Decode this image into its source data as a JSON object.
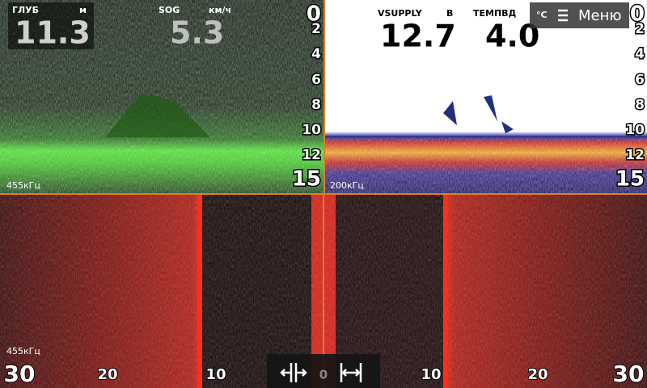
{
  "top_left": {
    "depth": {
      "label": "ГЛУБ",
      "unit": "м",
      "value": "11.3"
    },
    "sog": {
      "label": "SOG",
      "unit": "км/ч",
      "value": "5.3"
    },
    "scale": [
      0,
      2,
      4,
      6,
      8,
      10,
      12,
      15
    ],
    "frequency": "455кГц"
  },
  "top_right": {
    "vsupply": {
      "label": "VSUPPLY",
      "unit": "В",
      "value": "12.7"
    },
    "temp": {
      "label": "ТЕМПВД",
      "unit": "°C",
      "value": "4.0"
    },
    "menu": "Меню",
    "scale": [
      0,
      2,
      4,
      6,
      8,
      10,
      12,
      15
    ],
    "frequency": "200кГц"
  },
  "bottom": {
    "frequency": "455кГц",
    "range": [
      30,
      20,
      10,
      0,
      10,
      20,
      30
    ]
  }
}
